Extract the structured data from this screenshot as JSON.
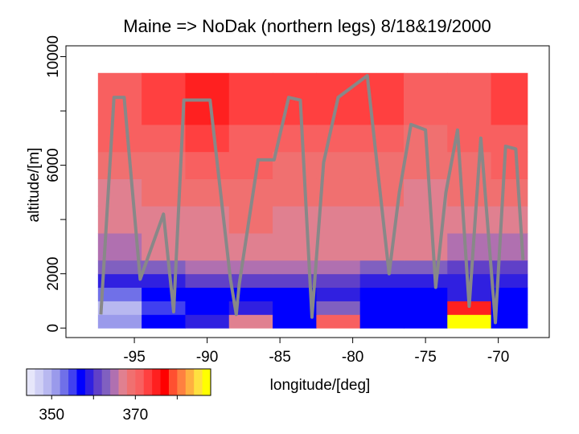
{
  "chart_data": {
    "type": "heatmap",
    "title": "Maine => NoDak (northern legs) 8/18&19/2000",
    "x_label": "longitude/[deg]",
    "y_label": "altitude/[m]",
    "xlim": [
      -99.7,
      -66.5
    ],
    "ylim": [
      -350,
      10400
    ],
    "xticks": [
      -95,
      -90,
      -85,
      -80,
      -75,
      -70
    ],
    "yticks": [
      0,
      2000,
      6000,
      10000
    ],
    "yminor_ticks": [
      4000,
      8000
    ],
    "x_edges": [
      -97.5,
      -94.5,
      -91.5,
      -88.5,
      -85.5,
      -82.5,
      -79.5,
      -76.5,
      -73.5,
      -70.5,
      -68
    ],
    "y_edges": [
      0,
      500,
      1000,
      1500,
      2000,
      2500,
      3500,
      4500,
      5500,
      6500,
      7500,
      9400
    ],
    "z": [
      [
        350,
        356,
        358,
        366,
        356,
        370,
        356,
        356,
        386,
        356
      ],
      [
        348,
        354,
        356,
        358,
        356,
        362,
        356,
        356,
        374,
        356
      ],
      [
        352,
        356,
        356,
        356,
        356,
        358,
        356,
        356,
        358,
        356
      ],
      [
        358,
        358,
        360,
        360,
        360,
        360,
        358,
        358,
        358,
        358
      ],
      [
        362,
        362,
        364,
        364,
        364,
        364,
        362,
        362,
        360,
        360
      ],
      [
        364,
        366,
        366,
        366,
        366,
        366,
        366,
        366,
        364,
        364
      ],
      [
        366,
        366,
        366,
        368,
        366,
        366,
        366,
        366,
        366,
        366
      ],
      [
        366,
        368,
        368,
        368,
        368,
        368,
        368,
        366,
        368,
        368
      ],
      [
        368,
        368,
        370,
        370,
        368,
        368,
        368,
        368,
        368,
        370
      ],
      [
        370,
        370,
        372,
        370,
        370,
        370,
        370,
        368,
        370,
        370
      ],
      [
        370,
        372,
        374,
        372,
        372,
        372,
        372,
        370,
        370,
        372
      ]
    ],
    "colorbar": {
      "bins": [
        344,
        346,
        348,
        350,
        352,
        354,
        356,
        358,
        360,
        362,
        364,
        366,
        368,
        370,
        372,
        374,
        376,
        378,
        380,
        382,
        384,
        386,
        388
      ],
      "colors": [
        "#e6e6fa",
        "#d0d0f5",
        "#b8b8f0",
        "#9a9aeb",
        "#7070e8",
        "#4040f0",
        "#0000ff",
        "#3020e0",
        "#6040c8",
        "#8060c0",
        "#b070b0",
        "#e08090",
        "#f07070",
        "#f86060",
        "#ff4040",
        "#ff2020",
        "#ff0000",
        "#ff5030",
        "#ff8040",
        "#ffb040",
        "#ffe040",
        "#ffff00"
      ],
      "ticks": [
        350,
        370
      ],
      "minor_ticks": [
        360,
        380
      ]
    },
    "track": {
      "color": "#888888",
      "x": [
        -97.3,
        -96.4,
        -95.7,
        -94.6,
        -93.0,
        -92.3,
        -91.6,
        -89.8,
        -88.4,
        -88.0,
        -87.8,
        -86.5,
        -85.4,
        -84.4,
        -83.6,
        -82.8,
        -82.0,
        -81.0,
        -79.0,
        -77.5,
        -76.8,
        -76.0,
        -75.0,
        -74.3,
        -73.6,
        -72.8,
        -72.0,
        -71.2,
        -70.2,
        -69.5,
        -68.8,
        -68.3
      ],
      "y": [
        500,
        8500,
        8500,
        1800,
        4200,
        600,
        8400,
        8400,
        1800,
        500,
        1600,
        6200,
        6200,
        8500,
        8400,
        400,
        6100,
        8500,
        9300,
        2000,
        5000,
        7500,
        7300,
        1500,
        5000,
        7300,
        800,
        7000,
        200,
        6700,
        6600,
        2500
      ]
    }
  }
}
